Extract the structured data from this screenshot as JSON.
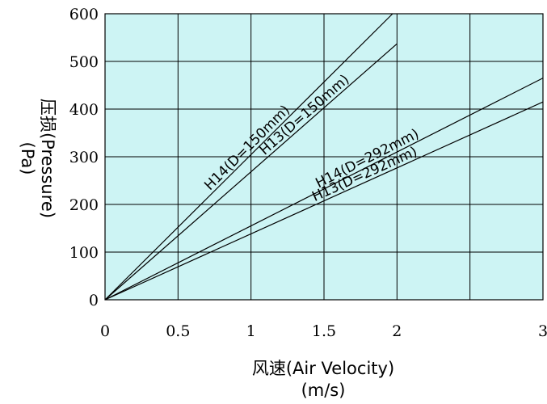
{
  "chart_data": {
    "type": "line",
    "xlabel_line1": "风速(Air  Velocity)",
    "xlabel_line2": "(m/s)",
    "ylabel_line1": "压损(Pressure)",
    "ylabel_line2": "(Pa)",
    "xlim": [
      0,
      3
    ],
    "ylim": [
      0,
      600
    ],
    "x_ticks": [
      0,
      0.5,
      1,
      1.5,
      2,
      3
    ],
    "x_tick_labels": [
      "0",
      "0.5",
      "1",
      "1.5",
      "2",
      "3"
    ],
    "y_ticks": [
      0,
      100,
      200,
      300,
      400,
      500,
      600
    ],
    "y_tick_labels": [
      "0",
      "100",
      "200",
      "300",
      "400",
      "500",
      "600"
    ],
    "grid": true,
    "background_color": "#cdf4f4",
    "line_color": "#000000",
    "series": [
      {
        "name": "H14(D=150mm)",
        "x": [
          0,
          1.97
        ],
        "y": [
          0,
          600
        ]
      },
      {
        "name": "H13(D=150mm)",
        "x": [
          0,
          2.0
        ],
        "y": [
          0,
          537
        ]
      },
      {
        "name": "H14(D=292mm)",
        "x": [
          0,
          3.0
        ],
        "y": [
          0,
          465
        ]
      },
      {
        "name": "H13(D=292mm)",
        "x": [
          0,
          3.0
        ],
        "y": [
          0,
          415
        ]
      }
    ]
  }
}
